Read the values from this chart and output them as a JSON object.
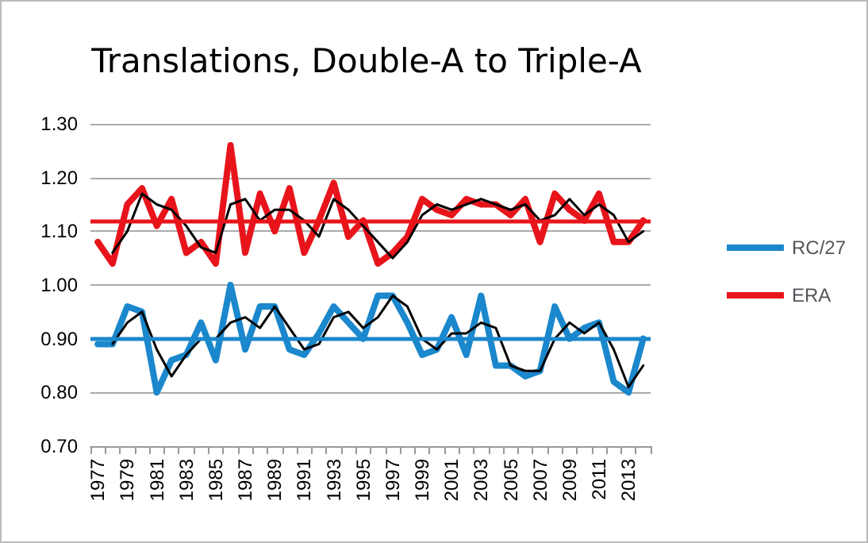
{
  "chart_data": {
    "type": "line",
    "title": "Translations, Double-A to Triple-A",
    "categories": [
      "1977",
      null,
      "1979",
      null,
      "1981",
      null,
      "1983",
      null,
      "1985",
      null,
      "1987",
      null,
      "1989",
      null,
      "1991",
      null,
      "1993",
      null,
      "1995",
      null,
      "1997",
      null,
      "1999",
      null,
      "2001",
      null,
      "2003",
      null,
      "2005",
      null,
      "2007",
      null,
      "2009",
      null,
      "2011",
      null,
      "2013",
      null
    ],
    "series": [
      {
        "name": "RC/27",
        "color": "#1b87cc",
        "values": [
          0.89,
          0.89,
          0.96,
          0.95,
          0.8,
          0.86,
          0.87,
          0.93,
          0.86,
          1.0,
          0.88,
          0.96,
          0.96,
          0.88,
          0.87,
          0.91,
          0.96,
          0.93,
          0.9,
          0.98,
          0.98,
          0.93,
          0.87,
          0.88,
          0.94,
          0.87,
          0.98,
          0.85,
          0.85,
          0.83,
          0.84,
          0.96,
          0.9,
          0.92,
          0.93,
          0.82,
          0.8,
          0.9
        ]
      },
      {
        "name": "ERA",
        "color": "#e8141b",
        "values": [
          1.08,
          1.04,
          1.15,
          1.18,
          1.11,
          1.16,
          1.06,
          1.08,
          1.04,
          1.26,
          1.06,
          1.17,
          1.1,
          1.18,
          1.06,
          1.12,
          1.19,
          1.09,
          1.12,
          1.04,
          1.06,
          1.09,
          1.16,
          1.14,
          1.13,
          1.16,
          1.15,
          1.15,
          1.13,
          1.16,
          1.08,
          1.17,
          1.14,
          1.12,
          1.17,
          1.08,
          1.08,
          1.12
        ]
      },
      {
        "color": "#000000",
        "values": [
          null,
          0.89,
          0.93,
          0.95,
          0.88,
          0.83,
          0.87,
          0.9,
          0.9,
          0.93,
          0.94,
          0.92,
          0.96,
          0.92,
          0.88,
          0.89,
          0.94,
          0.95,
          0.92,
          0.94,
          0.98,
          0.96,
          0.9,
          0.88,
          0.91,
          0.91,
          0.93,
          0.92,
          0.85,
          0.84,
          0.84,
          0.9,
          0.93,
          0.91,
          0.93,
          0.88,
          0.81,
          0.85
        ]
      },
      {
        "color": "#000000",
        "values": [
          null,
          1.06,
          1.1,
          1.17,
          1.15,
          1.14,
          1.11,
          1.07,
          1.06,
          1.15,
          1.16,
          1.12,
          1.14,
          1.14,
          1.12,
          1.09,
          1.16,
          1.14,
          1.11,
          1.08,
          1.05,
          1.08,
          1.13,
          1.15,
          1.14,
          1.15,
          1.16,
          1.15,
          1.14,
          1.15,
          1.12,
          1.13,
          1.16,
          1.13,
          1.15,
          1.13,
          1.08,
          1.1
        ]
      }
    ],
    "ylim": [
      0.7,
      1.3
    ],
    "yticks": [
      {
        "value": 0.7,
        "label": "0.70"
      },
      {
        "value": 0.8,
        "label": "0.80"
      },
      {
        "value": 0.9,
        "label": "0.90"
      },
      {
        "value": 1.0,
        "label": "1.00"
      },
      {
        "value": 1.1,
        "label": "1.10"
      },
      {
        "value": 1.2,
        "label": "1.20"
      },
      {
        "value": 1.3,
        "label": "1.30"
      }
    ],
    "ref_lines": [
      {
        "axis": "y",
        "value": 0.9,
        "color": "#1b87cc"
      },
      {
        "axis": "y",
        "value": 1.12,
        "color": "#e8141b"
      }
    ],
    "grid": "y",
    "legend": "right",
    "marker": "none",
    "line_style": "solid"
  }
}
